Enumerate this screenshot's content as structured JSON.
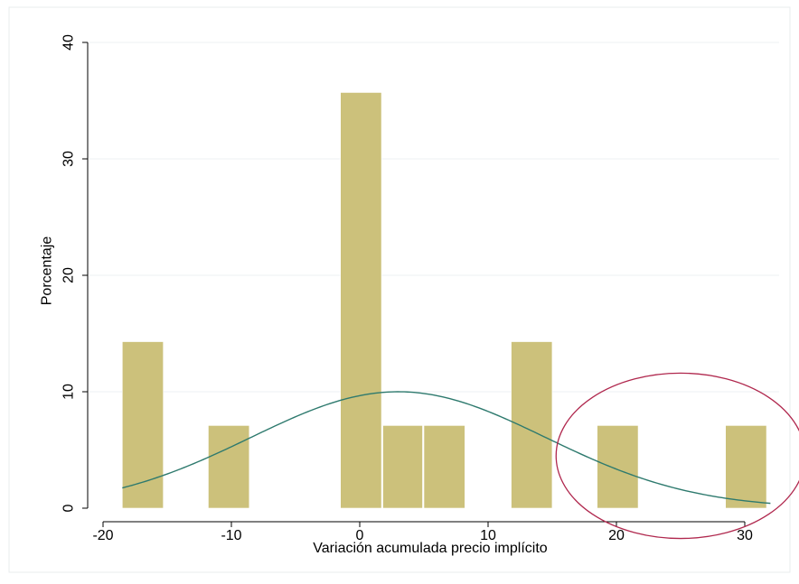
{
  "chart_data": {
    "type": "bar",
    "title": "",
    "xlabel": "Variación acumulada precio implícito",
    "ylabel": "Porcentaje",
    "xlim": [
      -21,
      33
    ],
    "ylim": [
      0,
      40
    ],
    "x_ticks": [
      -20,
      -10,
      0,
      10,
      20,
      30
    ],
    "x_tick_labels": [
      "-20",
      "-10",
      "0",
      "10",
      "20",
      "30"
    ],
    "y_ticks": [
      0,
      10,
      20,
      30,
      40
    ],
    "y_tick_labels": [
      "0",
      "10",
      "20",
      "30",
      "40"
    ],
    "grid": true,
    "bar_color": "#CCC17B",
    "curve_color": "#2E7A6E",
    "highlight_color": "#B0284E",
    "bars": [
      {
        "x0": -18.5,
        "x1": -15.2,
        "value": 14.3
      },
      {
        "x0": -11.8,
        "x1": -8.5,
        "value": 7.1
      },
      {
        "x0": -1.5,
        "x1": 1.8,
        "value": 35.7
      },
      {
        "x0": 1.8,
        "x1": 5.0,
        "value": 7.1
      },
      {
        "x0": 5.0,
        "x1": 8.3,
        "value": 7.1
      },
      {
        "x0": 11.8,
        "x1": 15.1,
        "value": 14.3
      },
      {
        "x0": 18.5,
        "x1": 21.8,
        "value": 7.1
      },
      {
        "x0": 28.5,
        "x1": 31.8,
        "value": 7.1
      }
    ],
    "normal_curve": {
      "mean": 3.0,
      "peak": 10.0,
      "sd": 11.5,
      "x_range": [
        -18.5,
        32.0
      ]
    },
    "highlight_ellipse": {
      "center": [
        25,
        4.5
      ],
      "rx": 9.7,
      "ry": 7.1
    }
  }
}
